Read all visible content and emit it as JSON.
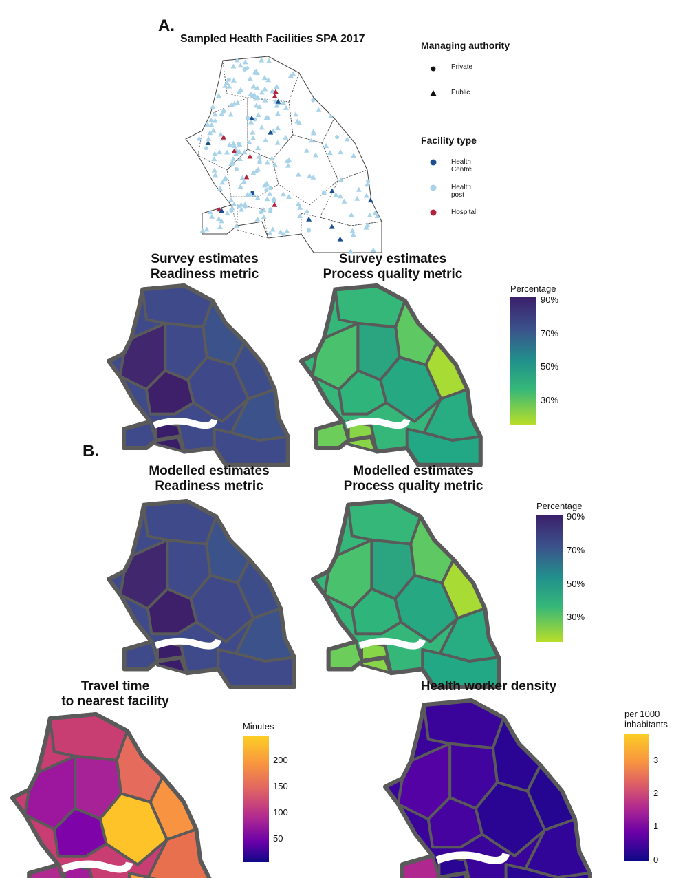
{
  "panelA": {
    "label": "A.",
    "map_title": "Sampled Health Facilities SPA 2017",
    "legend_managing": {
      "title": "Managing authority",
      "items": [
        {
          "label": "Private",
          "shape": "circle",
          "color": "#111111"
        },
        {
          "label": "Public",
          "shape": "triangle",
          "color": "#111111"
        }
      ]
    },
    "legend_type": {
      "title": "Facility type",
      "items": [
        {
          "label": "Health Centre",
          "color": "#1b4f8f"
        },
        {
          "label": "Health post",
          "color": "#a9d3e8"
        },
        {
          "label": "Hospital",
          "color": "#b5223b"
        }
      ]
    },
    "survey_readiness_title": "Survey estimates\nReadiness metric",
    "survey_process_title": "Survey estimates\nProcess quality metric",
    "colorbar": {
      "title": "Percentage",
      "ticks": [
        "90%",
        "70%",
        "50%",
        "30%"
      ],
      "scale": "viridis"
    }
  },
  "panelB": {
    "label": "B.",
    "modelled_readiness_title": "Modelled estimates\nReadiness metric",
    "modelled_process_title": "Modelled estimates\nProcess quality metric",
    "colorbar": {
      "title": "Percentage",
      "ticks": [
        "90%",
        "70%",
        "50%",
        "30%"
      ],
      "scale": "viridis"
    }
  },
  "travel": {
    "title": "Travel time\nto nearest facility",
    "colorbar": {
      "title": "Minutes",
      "ticks": [
        "200",
        "150",
        "100",
        "50"
      ],
      "scale": "plasma"
    }
  },
  "density": {
    "title": "Health worker density",
    "colorbar": {
      "title": "per 1000\ninhabitants",
      "ticks": [
        "3",
        "2",
        "1",
        "0"
      ],
      "scale": "plasma"
    }
  },
  "colors": {
    "border": "#5a5a5a",
    "readiness_fill": "#3b4f8a",
    "readiness_dark": "#3b1f6b",
    "process_fill": "#31b57b",
    "process_light": "#a8d94a",
    "teal": "#23898e"
  }
}
